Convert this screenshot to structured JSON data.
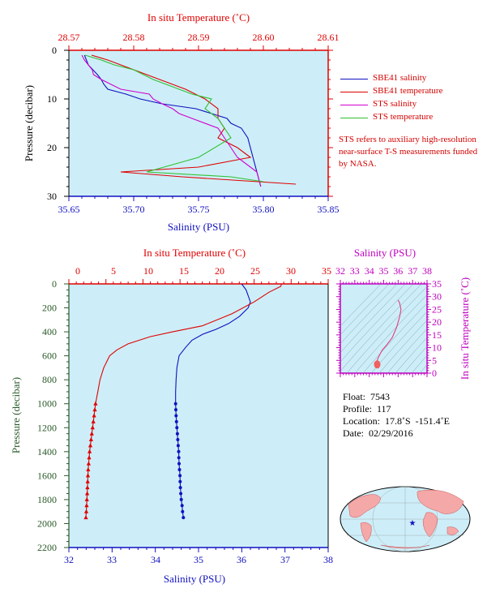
{
  "top_chart": {
    "x_top_label": "In situ Temperature (˚C)",
    "x_top_ticks": [
      "28.57",
      "28.58",
      "28.59",
      "28.60",
      "28.61"
    ],
    "x_bottom_label": "Salinity (PSU)",
    "x_bottom_ticks": [
      "35.65",
      "35.70",
      "35.75",
      "35.80",
      "35.85"
    ],
    "y_label": "Pressure (decibar)",
    "y_ticks": [
      "0",
      "10",
      "20",
      "30"
    ]
  },
  "legend": {
    "items": [
      {
        "label": "SBE41 salinity",
        "color": "#1010c0"
      },
      {
        "label": "SBE41 temperature",
        "color": "#e00000"
      },
      {
        "label": "STS salinity",
        "color": "#d000d0"
      },
      {
        "label": "STS temperature",
        "color": "#30c030"
      }
    ]
  },
  "note": "STS refers to auxiliary high-resolution near-surface T-S measurements funded by NASA.",
  "bottom_chart": {
    "x_top_label": "In situ Temperature (˚C)",
    "x_top_ticks": [
      "0",
      "5",
      "10",
      "15",
      "20",
      "25",
      "30",
      "35"
    ],
    "x_bottom_label": "Salinity (PSU)",
    "x_bottom_ticks": [
      "32",
      "33",
      "34",
      "35",
      "36",
      "37",
      "38"
    ],
    "y_label": "Pressure (decibar)",
    "y_ticks": [
      "0",
      "200",
      "400",
      "600",
      "800",
      "1000",
      "1200",
      "1400",
      "1600",
      "1800",
      "2000",
      "2200"
    ]
  },
  "ts_chart": {
    "x_label": "Salinity (PSU)",
    "x_ticks": [
      "32",
      "33",
      "34",
      "35",
      "36",
      "37",
      "38"
    ],
    "y_label": "In situ Temperature (˚C)",
    "y_ticks": [
      "0",
      "5",
      "10",
      "15",
      "20",
      "25",
      "30",
      "35"
    ]
  },
  "float_info": {
    "float": "Float:  7543",
    "profile": "Profile:  117",
    "location": "Location:  17.8˚S  -151.4˚E",
    "date": "Date:  02/29/2016"
  },
  "chart_data": [
    {
      "type": "line",
      "title": "",
      "xlabel": "Salinity (PSU)",
      "x2label": "In situ Temperature (˚C)",
      "ylabel": "Pressure (decibar)",
      "xlim": [
        35.65,
        35.85
      ],
      "x2lim": [
        28.57,
        28.61
      ],
      "ylim": [
        30,
        0
      ],
      "series": [
        {
          "name": "SBE41 salinity",
          "color": "#1010c0",
          "axis": "salinity",
          "x": [
            35.662,
            35.665,
            35.672,
            35.675,
            35.677,
            35.68,
            35.694,
            35.705,
            35.722,
            35.748,
            35.76,
            35.772,
            35.775,
            35.783,
            35.788,
            35.79,
            35.795,
            35.798
          ],
          "y": [
            1,
            3,
            5,
            6,
            7,
            8,
            9,
            10,
            11,
            12,
            13,
            14,
            15,
            16,
            18,
            20,
            25,
            28
          ]
        },
        {
          "name": "SBE41 temperature",
          "color": "#e00000",
          "axis": "temperature",
          "x": [
            28.5735,
            28.576,
            28.578,
            28.58,
            28.582,
            28.584,
            28.586,
            28.588,
            28.591,
            28.593,
            28.593,
            28.594,
            28.593,
            28.596,
            28.598,
            28.59,
            28.578,
            28.5875,
            28.605
          ],
          "y": [
            1,
            2,
            3,
            4,
            5,
            6,
            7,
            8,
            10,
            12,
            14,
            16,
            18,
            20,
            22,
            24,
            25,
            26,
            27.5
          ]
        },
        {
          "name": "STS salinity",
          "color": "#d000d0",
          "axis": "salinity",
          "x": [
            35.66,
            35.662,
            35.665,
            35.668,
            35.669,
            35.675,
            35.69,
            35.712,
            35.715,
            35.722,
            35.73,
            35.735,
            35.745,
            35.765,
            35.77,
            35.775,
            35.78,
            35.795,
            35.798
          ],
          "y": [
            1,
            2,
            3,
            4,
            5,
            6,
            8,
            9,
            10,
            11,
            12,
            13,
            14,
            16,
            18,
            20,
            22,
            25,
            28
          ]
        },
        {
          "name": "STS temperature",
          "color": "#30c030",
          "axis": "temperature",
          "x": [
            28.5725,
            28.575,
            28.577,
            28.58,
            28.583,
            28.587,
            28.589,
            28.592,
            28.591,
            28.593,
            28.595,
            28.59,
            28.582,
            28.595,
            28.6
          ],
          "y": [
            1,
            2,
            3,
            4,
            6,
            8,
            9,
            10,
            12,
            14,
            18,
            22,
            25,
            26,
            27
          ]
        }
      ]
    },
    {
      "type": "line",
      "title": "",
      "xlabel": "Salinity (PSU)",
      "x2label": "In situ Temperature (˚C)",
      "ylabel": "Pressure (decibar)",
      "xlim": [
        32,
        38
      ],
      "x2lim": [
        0,
        35
      ],
      "ylim": [
        2200,
        0
      ],
      "series": [
        {
          "name": "salinity",
          "color": "#1010c0",
          "axis": "salinity",
          "x": [
            36.0,
            36.1,
            36.2,
            36.15,
            35.95,
            35.7,
            35.4,
            35.1,
            34.85,
            34.7,
            34.55,
            34.5,
            34.48,
            34.47,
            34.47,
            34.48,
            34.5,
            34.52,
            34.54,
            34.55,
            34.57,
            34.58,
            34.6,
            34.62,
            34.63,
            34.65
          ],
          "y": [
            0,
            50,
            150,
            200,
            270,
            330,
            380,
            420,
            470,
            530,
            600,
            700,
            800,
            900,
            1000,
            1100,
            1200,
            1300,
            1400,
            1500,
            1600,
            1700,
            1800,
            1850,
            1900,
            1950
          ]
        },
        {
          "name": "temperature",
          "color": "#e00000",
          "axis": "temperature",
          "x": [
            28.7,
            28.6,
            27.0,
            25.0,
            22.0,
            18.0,
            14.0,
            11.0,
            8.0,
            6.5,
            5.5,
            4.7,
            4.2,
            3.9,
            3.6,
            3.4,
            3.2,
            3.0,
            2.8,
            2.6,
            2.5,
            2.4,
            2.3
          ],
          "y": [
            0,
            20,
            70,
            150,
            250,
            350,
            400,
            440,
            500,
            550,
            600,
            700,
            800,
            900,
            1000,
            1100,
            1200,
            1300,
            1400,
            1550,
            1700,
            1850,
            1950
          ]
        }
      ],
      "markers_from_pressure": 1000,
      "marker_step": 50
    },
    {
      "type": "line",
      "title": "",
      "xlabel": "Salinity (PSU)",
      "ylabel": "In situ Temperature (˚C)",
      "xlim": [
        32,
        38
      ],
      "ylim": [
        0,
        35
      ],
      "series": [
        {
          "name": "profile",
          "color": "#e04080",
          "x": [
            36.0,
            36.1,
            36.2,
            36.1,
            35.9,
            35.6,
            35.2,
            34.9,
            34.7,
            34.6,
            34.55,
            34.52,
            34.5,
            34.52,
            34.55,
            34.6,
            34.65
          ],
          "y": [
            28.7,
            27.5,
            25.0,
            22.0,
            18.0,
            14.0,
            11.0,
            9.0,
            7.0,
            5.8,
            5.0,
            4.5,
            4.0,
            3.6,
            3.2,
            2.8,
            2.4
          ]
        }
      ]
    }
  ],
  "map": {
    "continent_color": "#f4a8a8",
    "ocean_color": "#cdeef8",
    "marker_color": "#1010c0"
  }
}
